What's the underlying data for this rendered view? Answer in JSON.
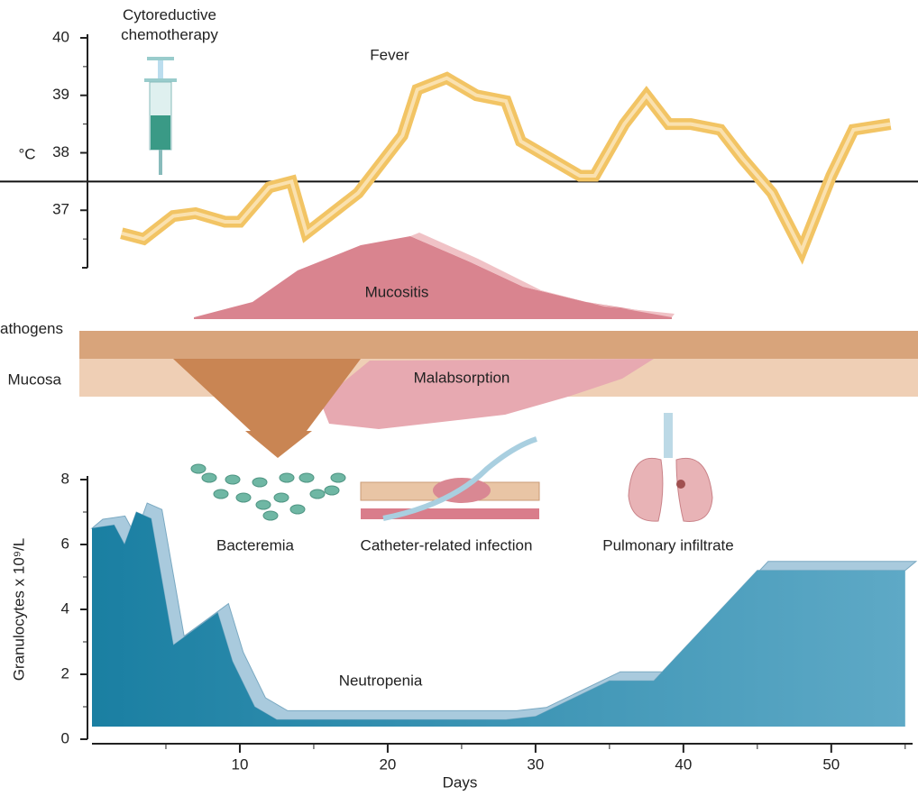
{
  "chart_data": [
    {
      "type": "line",
      "title": "Fever",
      "y_label": "°C",
      "annotation": "Cytoreductive chemotherapy",
      "x": [
        2,
        3.5,
        5.5,
        7,
        9,
        10,
        12,
        13.5,
        14.5,
        18,
        21,
        22,
        24,
        26,
        28,
        29,
        31,
        33,
        34,
        36,
        37.5,
        39,
        40.5,
        42.5,
        44,
        46,
        48,
        50,
        51.5,
        54
      ],
      "values": [
        36.6,
        36.5,
        36.9,
        36.95,
        36.8,
        36.8,
        37.4,
        37.5,
        36.6,
        37.3,
        38.3,
        39.1,
        39.3,
        39.0,
        38.9,
        38.2,
        37.9,
        37.6,
        37.6,
        38.5,
        39.0,
        38.5,
        38.5,
        38.4,
        37.9,
        37.3,
        36.3,
        37.6,
        38.4,
        38.5
      ],
      "color": "#f2c464",
      "threshold": 37.5,
      "xlim": [
        0,
        55.5
      ],
      "ylim": [
        36,
        40
      ],
      "yticks": [
        37,
        38,
        39,
        40
      ]
    },
    {
      "type": "area",
      "title": "Neutropenia",
      "x_label": "Days",
      "y_label": "Granulocytes x 10⁹/L",
      "x": [
        0,
        1.5,
        2.2,
        3,
        4,
        5.5,
        7,
        8.5,
        9.5,
        11,
        12.5,
        28,
        30,
        35,
        38,
        45,
        55
      ],
      "values": [
        6.5,
        6.6,
        6.0,
        7.0,
        6.8,
        2.9,
        3.4,
        3.9,
        2.4,
        1.0,
        0.6,
        0.6,
        0.7,
        1.8,
        1.8,
        5.2,
        5.2
      ],
      "color": "#1a7fa2",
      "xlim": [
        0,
        55.5
      ],
      "ylim": [
        0,
        8
      ],
      "xticks": [
        10,
        20,
        30,
        40,
        50
      ],
      "yticks": [
        0,
        2,
        4,
        6,
        8
      ]
    }
  ],
  "illustration": {
    "mucositis": "Mucositis",
    "pathogens": "Potential pathogens",
    "mucosa": "Mucosa",
    "malabsorption": "Malabsorption",
    "bacteremia": "Bacteremia",
    "catheter": "Catheter-related infection",
    "pulmonary": "Pulmonary infiltrate"
  }
}
